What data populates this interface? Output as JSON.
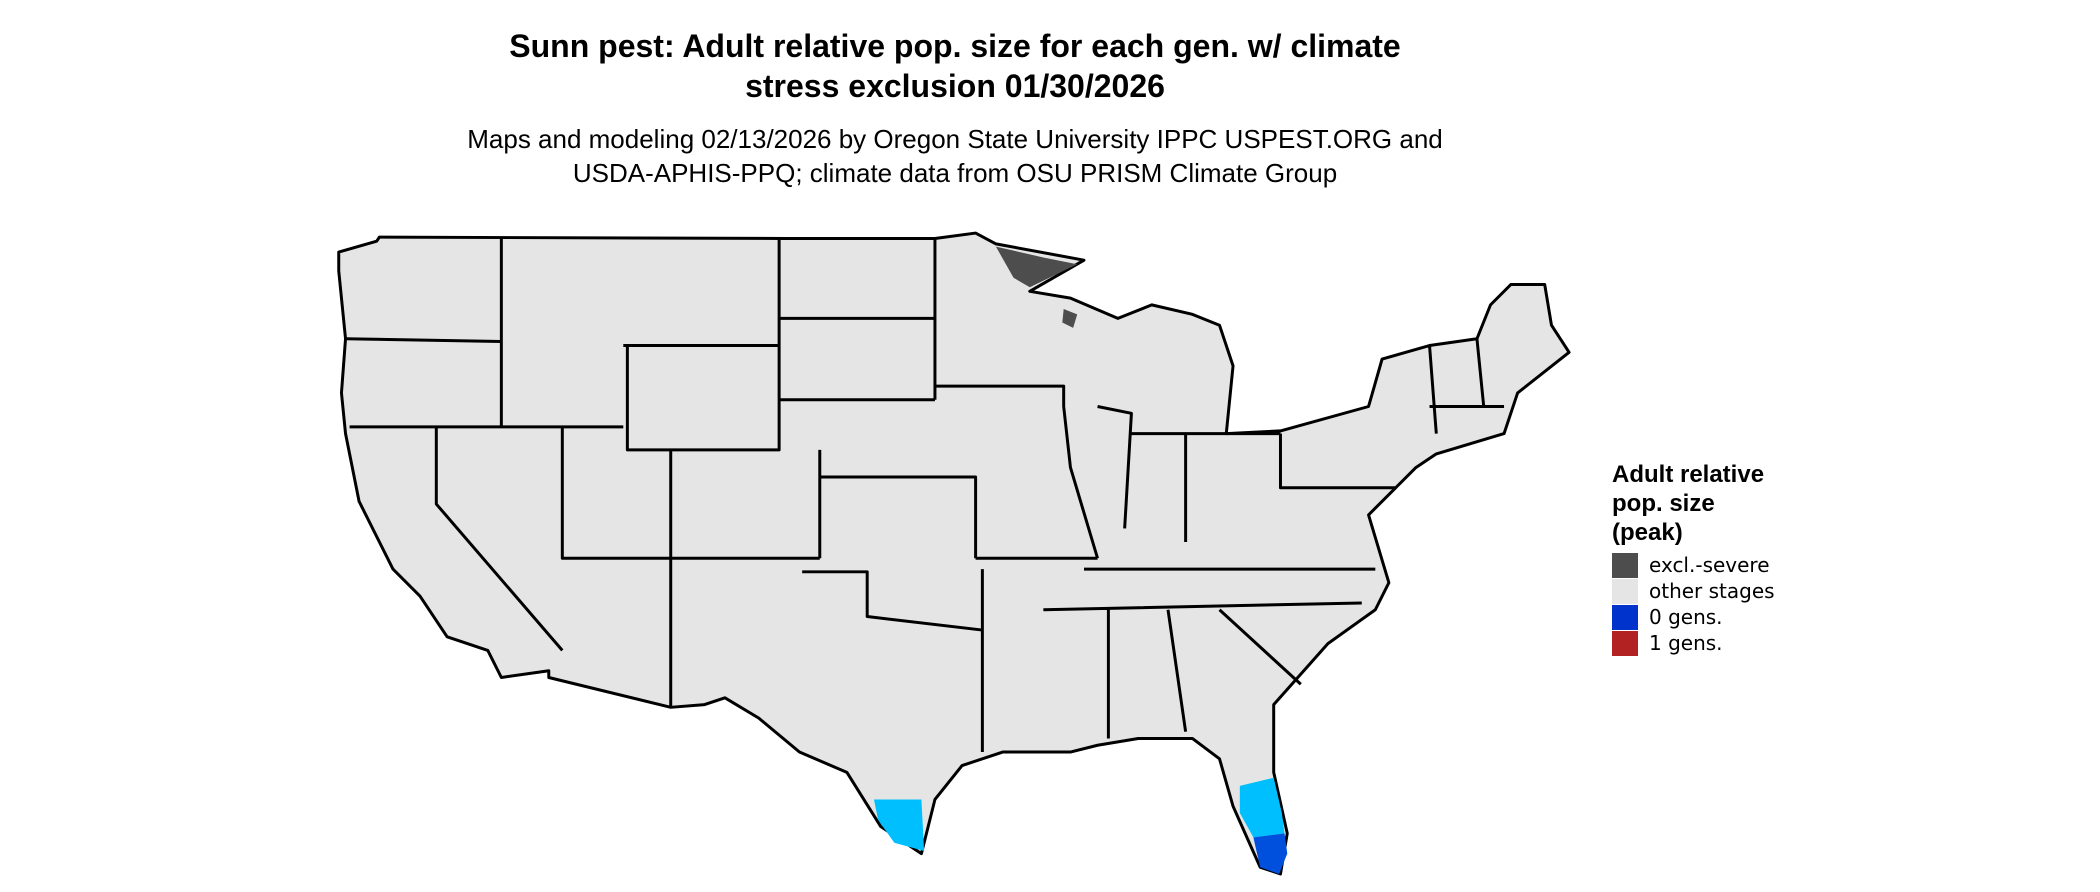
{
  "title": [
    "Sunn pest: Adult relative pop. size for each gen. w/ climate",
    "stress exclusion 01/30/2026"
  ],
  "subtitle": [
    "Maps and modeling 02/13/2026 by Oregon State University IPPC USPEST.ORG and",
    "USDA-APHIS-PPQ; climate data from OSU PRISM Climate Group"
  ],
  "legend": {
    "title": [
      "Adult relative",
      "pop. size",
      "(peak)"
    ],
    "items": [
      {
        "label": "excl.-severe",
        "color": "#4d4d4d"
      },
      {
        "label": "other stages",
        "color": "#e5e5e5"
      },
      {
        "label": "0 gens.",
        "color": "#0033cc"
      },
      {
        "label": "1 gens.",
        "color": "#b22222"
      }
    ]
  }
}
